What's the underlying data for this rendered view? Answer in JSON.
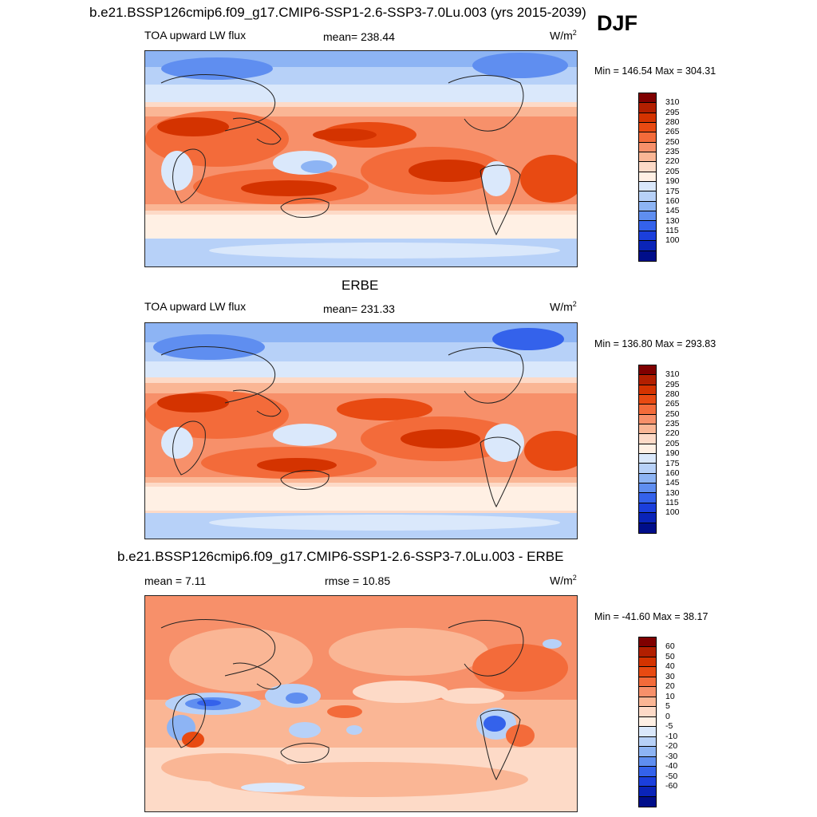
{
  "header": {
    "title": "b.e21.BSSP126cmip6.f09_g17.CMIP6-SSP1-2.6-SSP3-7.0Lu.003 (yrs 2015-2039)",
    "season": "DJF"
  },
  "panels": [
    {
      "title": "",
      "left_label": "TOA upward LW flux",
      "center_label": "mean= 238.44",
      "units": "W/m",
      "units_sup": "2",
      "minmax": "Min = 146.54 Max = 304.31",
      "colorbar_labels": [
        "310",
        "295",
        "280",
        "265",
        "250",
        "235",
        "220",
        "205",
        "190",
        "175",
        "160",
        "145",
        "130",
        "115",
        "100"
      ],
      "colors": [
        "#7f0000",
        "#b21f00",
        "#d43300",
        "#e84a12",
        "#f36b3a",
        "#f7906a",
        "#fab695",
        "#fddac7",
        "#fff0e4",
        "#dae8fb",
        "#b7d1f8",
        "#8db4f4",
        "#5f8ef0",
        "#3462eb",
        "#1b3fdc",
        "#0a24b8",
        "#000e8a"
      ]
    },
    {
      "title": "ERBE",
      "left_label": "TOA upward LW flux",
      "center_label": "mean= 231.33",
      "units": "W/m",
      "units_sup": "2",
      "minmax": "Min = 136.80 Max = 293.83",
      "colorbar_labels": [
        "310",
        "295",
        "280",
        "265",
        "250",
        "235",
        "220",
        "205",
        "190",
        "175",
        "160",
        "145",
        "130",
        "115",
        "100"
      ],
      "colors": [
        "#7f0000",
        "#b21f00",
        "#d43300",
        "#e84a12",
        "#f36b3a",
        "#f7906a",
        "#fab695",
        "#fddac7",
        "#fff0e4",
        "#dae8fb",
        "#b7d1f8",
        "#8db4f4",
        "#5f8ef0",
        "#3462eb",
        "#1b3fdc",
        "#0a24b8",
        "#000e8a"
      ]
    },
    {
      "title": "b.e21.BSSP126cmip6.f09_g17.CMIP6-SSP1-2.6-SSP3-7.0Lu.003 - ERBE",
      "left_label": "mean =   7.11",
      "center_label": "rmse =  10.85",
      "units": "W/m",
      "units_sup": "2",
      "minmax": "Min = -41.60 Max =  38.17",
      "colorbar_labels": [
        "60",
        "50",
        "40",
        "30",
        "20",
        "10",
        "5",
        "0",
        "-5",
        "-10",
        "-20",
        "-30",
        "-40",
        "-50",
        "-60"
      ],
      "colors": [
        "#7f0000",
        "#b21f00",
        "#d43300",
        "#e84a12",
        "#f36b3a",
        "#f7906a",
        "#fab695",
        "#fddac7",
        "#fff0e4",
        "#dae8fb",
        "#b7d1f8",
        "#8db4f4",
        "#5f8ef0",
        "#3462eb",
        "#1b3fdc",
        "#0a24b8",
        "#000e8a"
      ]
    }
  ]
}
